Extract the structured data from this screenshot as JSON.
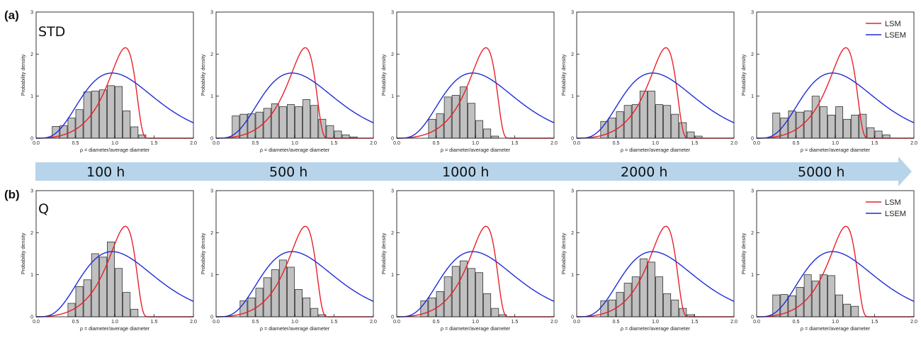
{
  "figure": {
    "row_labels": [
      "(a)",
      "(b)"
    ],
    "condition_labels": [
      "STD",
      "Q"
    ],
    "time_labels": [
      "100 h",
      "500 h",
      "1000 h",
      "2000 h",
      "5000 h"
    ],
    "arrow_color": "#b7d4ea"
  },
  "style": {
    "bar_fill": "#c0c0c0",
    "bar_stroke": "#333333",
    "lsm_color": "#e8202a",
    "lsem_color": "#1f2bd8"
  },
  "chart_data": [
    {
      "type": "bar",
      "row": "a",
      "time": "100 h",
      "xlabel": "ρ = diameter/average diameter",
      "ylabel": "Probability density",
      "xlim": [
        0,
        2.0
      ],
      "ylim": [
        0,
        3
      ],
      "xticks": [
        "0.0",
        "0.5",
        "1.0",
        "1.5",
        "2.0"
      ],
      "yticks": [
        "0",
        "1",
        "2",
        "3"
      ],
      "bin_width": 0.1,
      "x": [
        0.25,
        0.35,
        0.45,
        0.55,
        0.65,
        0.75,
        0.85,
        0.95,
        1.05,
        1.15,
        1.25,
        1.35,
        1.45,
        1.55
      ],
      "values": [
        0.28,
        0.3,
        0.48,
        0.68,
        1.1,
        1.12,
        1.15,
        1.25,
        1.23,
        0.65,
        0.27,
        0.08,
        0,
        0
      ],
      "series": [
        {
          "name": "LSM"
        },
        {
          "name": "LSEM"
        }
      ],
      "legend": false
    },
    {
      "type": "bar",
      "row": "a",
      "time": "500 h",
      "xlabel": "ρ = diameter/average diameter",
      "ylabel": "Probability density",
      "xlim": [
        0,
        2.0
      ],
      "ylim": [
        0,
        3
      ],
      "xticks": [
        "0.0",
        "0.5",
        "1.0",
        "1.5",
        "2.0"
      ],
      "yticks": [
        "0",
        "1",
        "2",
        "3"
      ],
      "bin_width": 0.1,
      "x": [
        0.25,
        0.35,
        0.45,
        0.55,
        0.65,
        0.75,
        0.85,
        0.95,
        1.05,
        1.15,
        1.25,
        1.35,
        1.45,
        1.55,
        1.65,
        1.75,
        1.85
      ],
      "values": [
        0.53,
        0.57,
        0.58,
        0.62,
        0.71,
        0.82,
        0.75,
        0.8,
        0.75,
        0.92,
        0.78,
        0.45,
        0.3,
        0.17,
        0.08,
        0.03,
        0
      ],
      "series": [
        {
          "name": "LSM"
        },
        {
          "name": "LSEM"
        }
      ],
      "legend": false
    },
    {
      "type": "bar",
      "row": "a",
      "time": "1000 h",
      "xlabel": "ρ = diameter/average diameter",
      "ylabel": "Probability density",
      "xlim": [
        0,
        2.0
      ],
      "ylim": [
        0,
        3
      ],
      "xticks": [
        "0.0",
        "0.5",
        "1.0",
        "1.5",
        "2.0"
      ],
      "yticks": [
        "0",
        "1",
        "2",
        "3"
      ],
      "bin_width": 0.1,
      "x": [
        0.45,
        0.55,
        0.65,
        0.75,
        0.85,
        0.95,
        1.05,
        1.15,
        1.25,
        1.35,
        1.45,
        1.55
      ],
      "values": [
        0.45,
        0.58,
        0.98,
        1.02,
        1.22,
        0.83,
        0.42,
        0.22,
        0.05,
        0,
        0,
        0
      ],
      "series": [
        {
          "name": "LSM"
        },
        {
          "name": "LSEM"
        }
      ],
      "legend": false
    },
    {
      "type": "bar",
      "row": "a",
      "time": "2000 h",
      "xlabel": "ρ = diameter/average diameter",
      "ylabel": "Probability density",
      "xlim": [
        0,
        2.0
      ],
      "ylim": [
        0,
        3
      ],
      "xticks": [
        "0.0",
        "0.5",
        "1.0",
        "1.5",
        "2.0"
      ],
      "yticks": [
        "0",
        "1",
        "2",
        "3"
      ],
      "bin_width": 0.1,
      "x": [
        0.35,
        0.45,
        0.55,
        0.65,
        0.75,
        0.85,
        0.95,
        1.05,
        1.15,
        1.25,
        1.35,
        1.45,
        1.55
      ],
      "values": [
        0.4,
        0.48,
        0.63,
        0.78,
        0.8,
        1.12,
        1.12,
        0.8,
        0.78,
        0.57,
        0.37,
        0.15,
        0.05
      ],
      "series": [
        {
          "name": "LSM"
        },
        {
          "name": "LSEM"
        }
      ],
      "legend": false
    },
    {
      "type": "bar",
      "row": "a",
      "time": "5000 h",
      "xlabel": "ρ = diameter/average diameter",
      "ylabel": "Probability density",
      "xlim": [
        0,
        2.0
      ],
      "ylim": [
        0,
        3
      ],
      "xticks": [
        "0.0",
        "0.5",
        "1.0",
        "1.5",
        "2.0"
      ],
      "yticks": [
        "0",
        "1",
        "2",
        "3"
      ],
      "bin_width": 0.1,
      "x": [
        0.25,
        0.35,
        0.45,
        0.55,
        0.65,
        0.75,
        0.85,
        0.95,
        1.05,
        1.15,
        1.25,
        1.35,
        1.45,
        1.55,
        1.65,
        1.75,
        1.85
      ],
      "values": [
        0.6,
        0.48,
        0.65,
        0.62,
        0.65,
        1.0,
        0.75,
        0.55,
        0.75,
        0.45,
        0.55,
        0.57,
        0.25,
        0.17,
        0.08,
        0,
        0
      ],
      "series": [
        {
          "name": "LSM"
        },
        {
          "name": "LSEM"
        }
      ],
      "legend": true,
      "legend_position": "top-right"
    },
    {
      "type": "bar",
      "row": "b",
      "time": "100 h",
      "xlabel": "ρ = diameter/average diameter",
      "ylabel": "Probability density",
      "xlim": [
        0,
        2.0
      ],
      "ylim": [
        0,
        3
      ],
      "xticks": [
        "0.0",
        "0.5",
        "1.0",
        "1.5",
        "2.0"
      ],
      "yticks": [
        "0",
        "1",
        "2",
        "3"
      ],
      "bin_width": 0.1,
      "x": [
        0.45,
        0.55,
        0.65,
        0.75,
        0.85,
        0.95,
        1.05,
        1.15,
        1.25,
        1.35
      ],
      "values": [
        0.32,
        0.72,
        0.88,
        1.5,
        1.42,
        1.78,
        1.15,
        0.58,
        0.18,
        0
      ],
      "series": [
        {
          "name": "LSM"
        },
        {
          "name": "LSEM"
        }
      ],
      "legend": false
    },
    {
      "type": "bar",
      "row": "b",
      "time": "500 h",
      "xlabel": "ρ = diameter/average diameter",
      "ylabel": "Probability density",
      "xlim": [
        0,
        2.0
      ],
      "ylim": [
        0,
        3
      ],
      "xticks": [
        "0.0",
        "0.5",
        "1.0",
        "1.5",
        "2.0"
      ],
      "yticks": [
        "0",
        "1",
        "2",
        "3"
      ],
      "bin_width": 0.1,
      "x": [
        0.35,
        0.45,
        0.55,
        0.65,
        0.75,
        0.85,
        0.95,
        1.05,
        1.15,
        1.25,
        1.35,
        1.45,
        1.55
      ],
      "values": [
        0.38,
        0.45,
        0.68,
        0.93,
        1.12,
        1.35,
        1.18,
        0.65,
        0.45,
        0.2,
        0.05,
        0,
        0
      ],
      "series": [
        {
          "name": "LSM"
        },
        {
          "name": "LSEM"
        }
      ],
      "legend": false
    },
    {
      "type": "bar",
      "row": "b",
      "time": "1000 h",
      "xlabel": "ρ = diameter/average diameter",
      "ylabel": "Probability density",
      "xlim": [
        0,
        2.0
      ],
      "ylim": [
        0,
        3
      ],
      "xticks": [
        "0.0",
        "0.5",
        "1.0",
        "1.5",
        "2.0"
      ],
      "yticks": [
        "0",
        "1",
        "2",
        "3"
      ],
      "bin_width": 0.1,
      "x": [
        0.35,
        0.45,
        0.55,
        0.65,
        0.75,
        0.85,
        0.95,
        1.05,
        1.15,
        1.25,
        1.35,
        1.45,
        1.55
      ],
      "values": [
        0.38,
        0.45,
        0.6,
        0.95,
        1.2,
        1.33,
        1.15,
        1.05,
        0.55,
        0.2,
        0.05,
        0,
        0
      ],
      "series": [
        {
          "name": "LSM"
        },
        {
          "name": "LSEM"
        }
      ],
      "legend": false
    },
    {
      "type": "bar",
      "row": "b",
      "time": "2000 h",
      "xlabel": "ρ = diameter/average diameter",
      "ylabel": "Probability density",
      "xlim": [
        0,
        2.0
      ],
      "ylim": [
        0,
        3
      ],
      "xticks": [
        "0.0",
        "0.5",
        "1.0",
        "1.5",
        "2.0"
      ],
      "yticks": [
        "0",
        "1",
        "2",
        "3"
      ],
      "bin_width": 0.1,
      "x": [
        0.35,
        0.45,
        0.55,
        0.65,
        0.75,
        0.85,
        0.95,
        1.05,
        1.15,
        1.25,
        1.35,
        1.45,
        1.55
      ],
      "values": [
        0.38,
        0.4,
        0.58,
        0.8,
        0.95,
        1.38,
        1.3,
        0.95,
        0.55,
        0.4,
        0.2,
        0.05,
        0
      ],
      "series": [
        {
          "name": "LSM"
        },
        {
          "name": "LSEM"
        }
      ],
      "legend": false
    },
    {
      "type": "bar",
      "row": "b",
      "time": "5000 h",
      "xlabel": "ρ = diameter/average diameter",
      "ylabel": "Probability density",
      "xlim": [
        0,
        2.0
      ],
      "ylim": [
        0,
        3
      ],
      "xticks": [
        "0.0",
        "0.5",
        "1.0",
        "1.5",
        "2.0"
      ],
      "yticks": [
        "0",
        "1",
        "2",
        "3"
      ],
      "bin_width": 0.1,
      "x": [
        0.25,
        0.35,
        0.45,
        0.55,
        0.65,
        0.75,
        0.85,
        0.95,
        1.05,
        1.15,
        1.25,
        1.35,
        1.45,
        1.55,
        1.65
      ],
      "values": [
        0.52,
        0.53,
        0.5,
        0.7,
        1.0,
        0.85,
        1.0,
        0.98,
        0.52,
        0.3,
        0.25,
        0,
        0,
        0,
        0
      ],
      "series": [
        {
          "name": "LSM"
        },
        {
          "name": "LSEM"
        }
      ],
      "legend": true,
      "legend_position": "top-right"
    }
  ]
}
